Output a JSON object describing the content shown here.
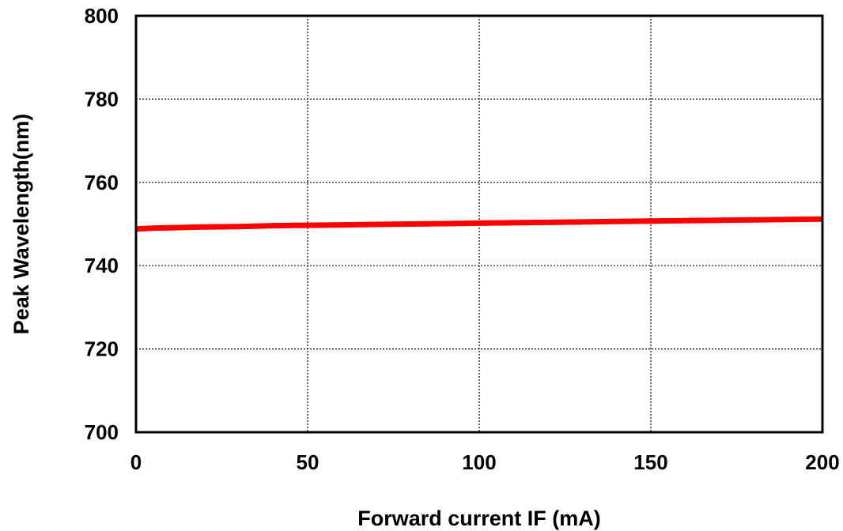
{
  "chart_data": {
    "type": "line",
    "title": "",
    "xlabel": "Forward current IF (mA)",
    "ylabel": "Peak Wavelength(nm)",
    "xlim": [
      0,
      200
    ],
    "ylim": [
      700,
      800
    ],
    "x_ticks": [
      0,
      50,
      100,
      150,
      200
    ],
    "y_ticks": [
      700,
      720,
      740,
      760,
      780,
      800
    ],
    "x_tick_labels": [
      "0",
      "50",
      "100",
      "150",
      "200"
    ],
    "y_tick_labels": [
      "700",
      "720",
      "740",
      "760",
      "780",
      "800"
    ],
    "grid": true,
    "legend": "none",
    "series": [
      {
        "color": "#ff0000",
        "x": [
          0,
          5,
          10,
          20,
          30,
          40,
          50,
          60,
          70,
          80,
          90,
          100,
          110,
          120,
          130,
          140,
          150,
          160,
          170,
          180,
          190,
          200
        ],
        "y": [
          748.8,
          749.0,
          749.1,
          749.3,
          749.4,
          749.6,
          749.7,
          749.8,
          749.9,
          750.0,
          750.1,
          750.2,
          750.3,
          750.4,
          750.5,
          750.6,
          750.7,
          750.8,
          750.9,
          751.0,
          751.1,
          751.2
        ]
      }
    ]
  }
}
